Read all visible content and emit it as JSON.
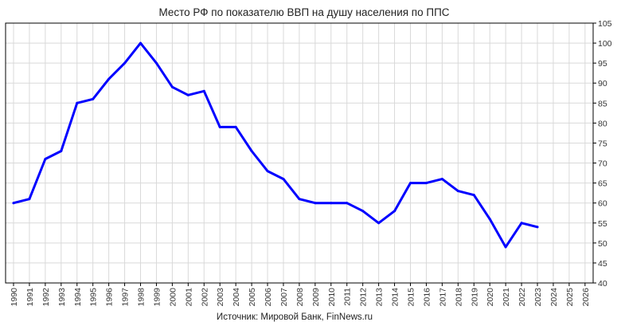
{
  "chart_data": {
    "type": "line",
    "title": "Место РФ по показателю ВВП на душу населения по ППС",
    "source": "Источник: Мировой Банк, FinNews.ru",
    "xlabel": "",
    "ylabel": "",
    "x_ticks": [
      "1990",
      "1991",
      "1992",
      "1993",
      "1994",
      "1995",
      "1996",
      "1997",
      "1998",
      "1999",
      "2000",
      "2001",
      "2002",
      "2003",
      "2004",
      "2005",
      "2006",
      "2007",
      "2008",
      "2009",
      "2010",
      "2011",
      "2012",
      "2013",
      "2014",
      "2015",
      "2016",
      "2017",
      "2018",
      "2019",
      "2020",
      "2021",
      "2022",
      "2023",
      "2024",
      "2025",
      "2026"
    ],
    "y_ticks": [
      "40",
      "45",
      "50",
      "55",
      "60",
      "65",
      "70",
      "75",
      "80",
      "85",
      "90",
      "95",
      "100",
      "105"
    ],
    "ylim": [
      40,
      105
    ],
    "xlim": [
      1990,
      2026
    ],
    "y_axis_side": "right",
    "grid": true,
    "line_color": "#0000ff",
    "series": [
      {
        "x": [
          1990,
          1991,
          1992,
          1993,
          1994,
          1995,
          1996,
          1997,
          1998,
          1999,
          2000,
          2001,
          2002,
          2003,
          2004,
          2005,
          2006,
          2007,
          2008,
          2009,
          2010,
          2011,
          2012,
          2013,
          2014,
          2015,
          2016,
          2017,
          2018,
          2019,
          2020,
          2021,
          2022,
          2023
        ],
        "values": [
          60,
          61,
          71,
          73,
          85,
          86,
          91,
          95,
          100,
          95,
          89,
          87,
          88,
          79,
          79,
          73,
          68,
          66,
          61,
          60,
          60,
          60,
          58,
          55,
          58,
          65,
          65,
          66,
          63,
          62,
          56,
          49,
          55,
          54
        ]
      }
    ]
  }
}
